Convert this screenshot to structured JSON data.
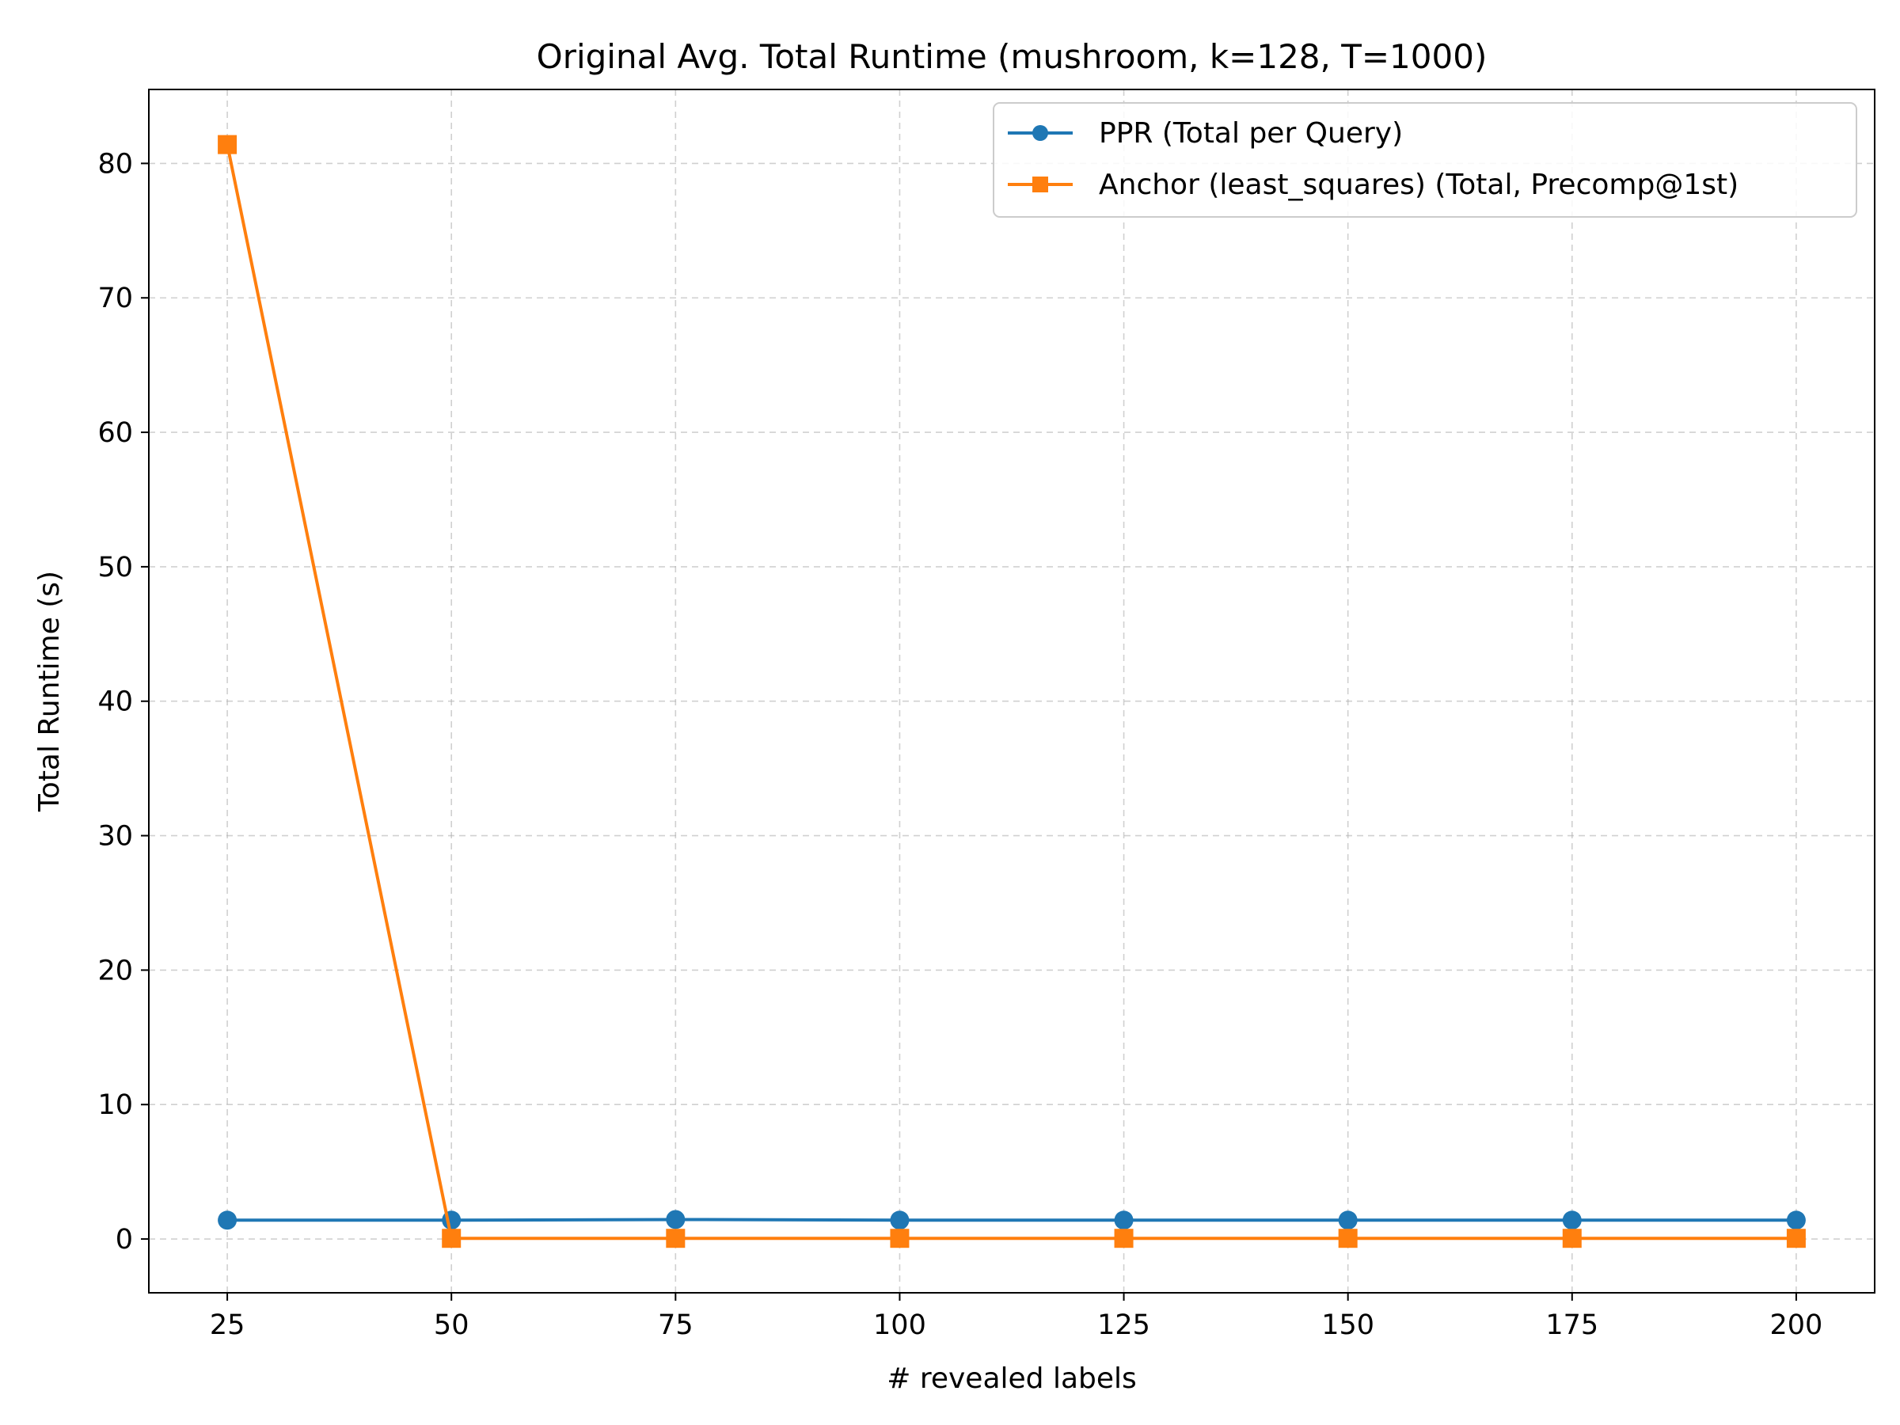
{
  "chart_data": {
    "type": "line",
    "title": "Original Avg. Total Runtime (mushroom, k=128, T=1000)",
    "xlabel": "# revealed labels",
    "ylabel": "Total Runtime (s)",
    "x": [
      25,
      50,
      75,
      100,
      125,
      150,
      175,
      200
    ],
    "xlim": [
      16.25,
      208.75
    ],
    "ylim": [
      -4.0,
      85.5
    ],
    "xticks": [
      25,
      50,
      75,
      100,
      125,
      150,
      175,
      200
    ],
    "yticks": [
      0,
      10,
      20,
      30,
      40,
      50,
      60,
      70,
      80
    ],
    "grid": true,
    "legend_position": "upper right",
    "series": [
      {
        "name": "PPR (Total per Query)",
        "color": "#1f77b4",
        "marker": "circle",
        "values": [
          1.4,
          1.4,
          1.45,
          1.4,
          1.4,
          1.4,
          1.4,
          1.4
        ]
      },
      {
        "name": "Anchor (least_squares) (Total, Precomp@1st)",
        "color": "#ff7f0e",
        "marker": "square",
        "values": [
          81.4,
          0.05,
          0.05,
          0.05,
          0.05,
          0.05,
          0.05,
          0.05
        ]
      }
    ]
  }
}
